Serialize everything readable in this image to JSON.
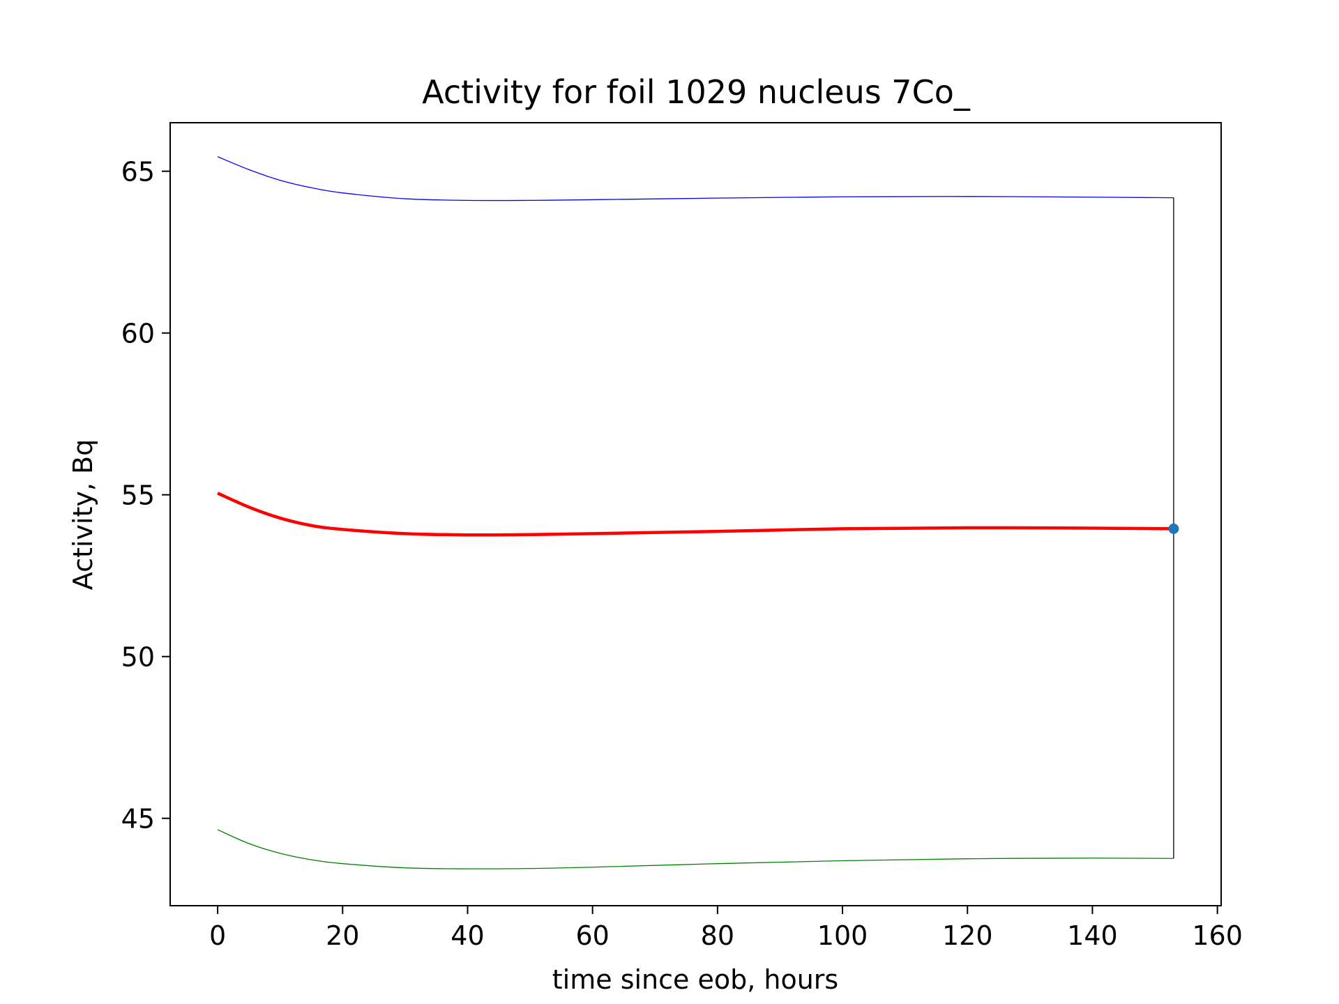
{
  "chart_data": {
    "type": "line",
    "title": "Activity for foil 1029 nucleus 7Co_",
    "xlabel": "time since eob, hours",
    "ylabel": "Activity, Bq",
    "xlim": [
      -7.6,
      160.6
    ],
    "ylim": [
      42.3,
      66.5
    ],
    "x_ticks": [
      0,
      20,
      40,
      60,
      80,
      100,
      120,
      140,
      160
    ],
    "y_ticks": [
      45,
      50,
      55,
      60,
      65
    ],
    "grid": false,
    "legend": "none",
    "series": [
      {
        "color": "#0000ff",
        "x": [
          0,
          5,
          10,
          15,
          20,
          30,
          40,
          50,
          60,
          80,
          100,
          120,
          140,
          153
        ],
        "values": [
          65.45,
          65.05,
          64.72,
          64.49,
          64.33,
          64.15,
          64.1,
          64.1,
          64.12,
          64.17,
          64.21,
          64.22,
          64.2,
          64.18
        ]
      },
      {
        "color": "#ff0000",
        "x": [
          0,
          5,
          10,
          15,
          20,
          30,
          40,
          50,
          60,
          80,
          100,
          120,
          140,
          153
        ],
        "values": [
          55.05,
          54.62,
          54.28,
          54.05,
          53.93,
          53.8,
          53.76,
          53.77,
          53.8,
          53.87,
          53.95,
          53.98,
          53.97,
          53.95
        ]
      },
      {
        "color": "#008000",
        "x": [
          0,
          5,
          10,
          15,
          20,
          30,
          40,
          50,
          60,
          80,
          100,
          120,
          140,
          153
        ],
        "values": [
          44.65,
          44.22,
          43.92,
          43.72,
          43.6,
          43.47,
          43.44,
          43.45,
          43.49,
          43.6,
          43.69,
          43.75,
          43.77,
          43.76
        ]
      }
    ],
    "vline": {
      "x": 153,
      "y_from": 43.76,
      "y_to": 64.18,
      "color": "#000000"
    },
    "point": {
      "x": 153,
      "y": 53.95,
      "color": "#1f77b4"
    }
  }
}
